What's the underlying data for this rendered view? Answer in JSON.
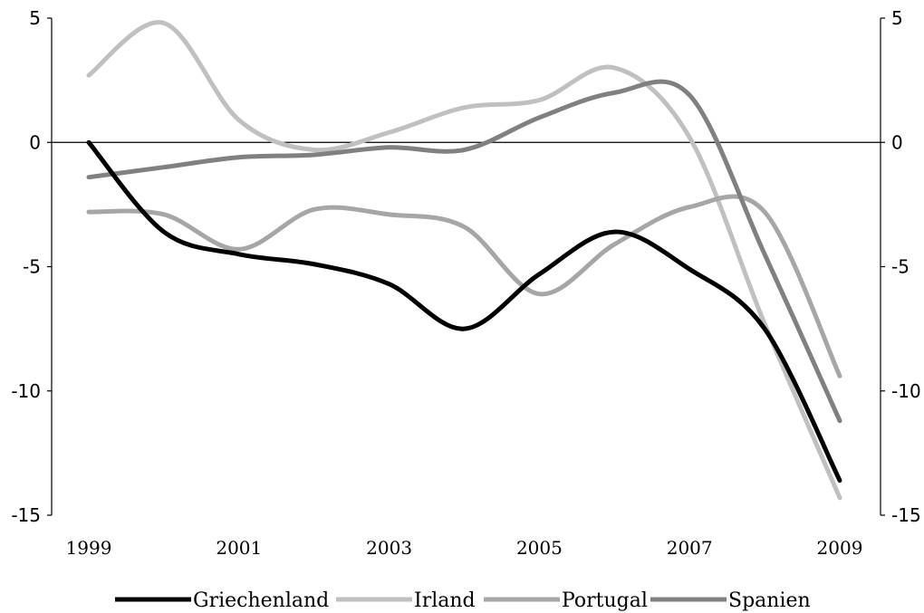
{
  "chart_data": {
    "type": "line",
    "x": [
      1999,
      2000,
      2001,
      2002,
      2003,
      2004,
      2005,
      2006,
      2007,
      2008,
      2009
    ],
    "x_ticks": [
      "1999",
      "2001",
      "2003",
      "2005",
      "2007",
      "2009"
    ],
    "y_ticks": [
      "5",
      "0",
      "-5",
      "-10",
      "-15"
    ],
    "ylim": [
      -15,
      5
    ],
    "xlim": [
      1999,
      2009
    ],
    "grid": false,
    "secondary_y_axis": true,
    "legend_position": "bottom",
    "series": [
      {
        "name": "Griechenland",
        "color": "#000000",
        "values": [
          0,
          -3.6,
          -4.5,
          -4.9,
          -5.7,
          -7.5,
          -5.3,
          -3.6,
          -5.1,
          -7.5,
          -13.6
        ]
      },
      {
        "name": "Irland",
        "color": "#c0c0c0",
        "values": [
          2.7,
          4.8,
          0.9,
          -0.3,
          0.4,
          1.4,
          1.7,
          3.0,
          0.2,
          -7.3,
          -14.3
        ]
      },
      {
        "name": "Portugal",
        "color": "#a6a6a6",
        "values": [
          -2.8,
          -2.9,
          -4.3,
          -2.7,
          -2.9,
          -3.4,
          -6.1,
          -4.1,
          -2.6,
          -2.8,
          -9.4
        ]
      },
      {
        "name": "Spanien",
        "color": "#808080",
        "values": [
          -1.4,
          -1.0,
          -0.6,
          -0.5,
          -0.2,
          -0.3,
          1.0,
          2.0,
          1.9,
          -4.5,
          -11.2
        ]
      }
    ]
  }
}
